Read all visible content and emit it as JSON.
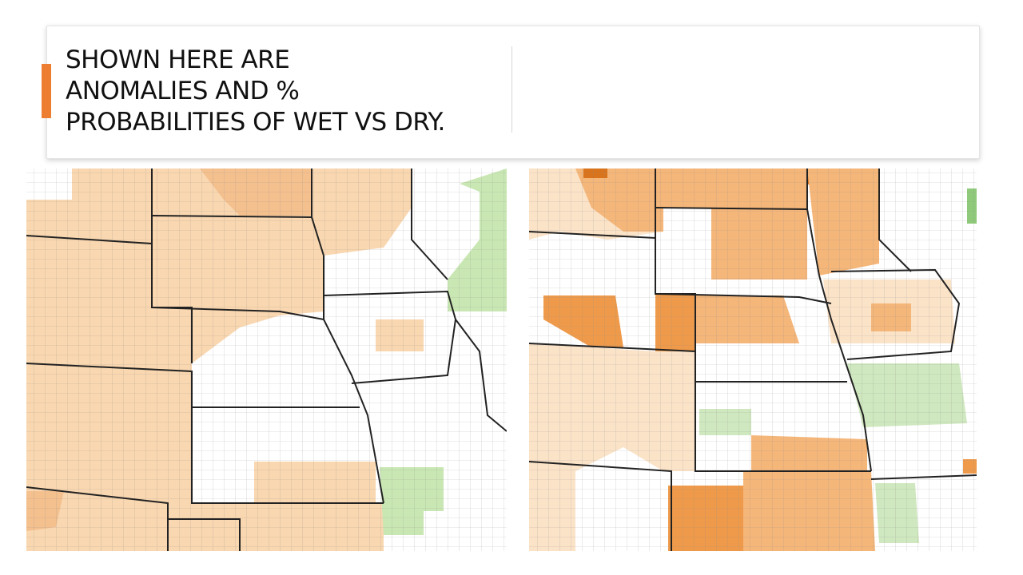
{
  "header": {
    "title_lines": [
      "SHOWN HERE ARE",
      "ANOMALIES AND %",
      "PROBABILITIES OF WET VS DRY."
    ]
  }
}
